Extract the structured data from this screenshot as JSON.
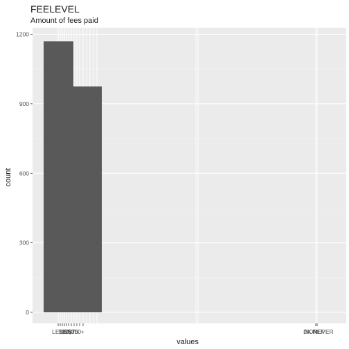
{
  "chart_data": {
    "type": "bar",
    "title": "FEELEVEL",
    "subtitle": "Amount of fees paid",
    "xlabel": "values",
    "ylabel": "count",
    "ylim": [
      0,
      1250
    ],
    "yticks": [
      0,
      300,
      600,
      900,
      1200
    ],
    "grid": true,
    "bars": [
      {
        "label": "LESS THAN $10",
        "value": 1170
      },
      {
        "label": "$10-$25",
        "value": 975
      }
    ],
    "x_tick_labels_left": [
      "LESS",
      "$10",
      "$25",
      "$50",
      "$75",
      "$100+"
    ],
    "x_tick_labels_right": [
      "DK",
      "NONE",
      "REF",
      "NEVER"
    ],
    "colors": {
      "bar": "#595959",
      "panel": "#ebebeb",
      "grid": "#ffffff"
    }
  }
}
